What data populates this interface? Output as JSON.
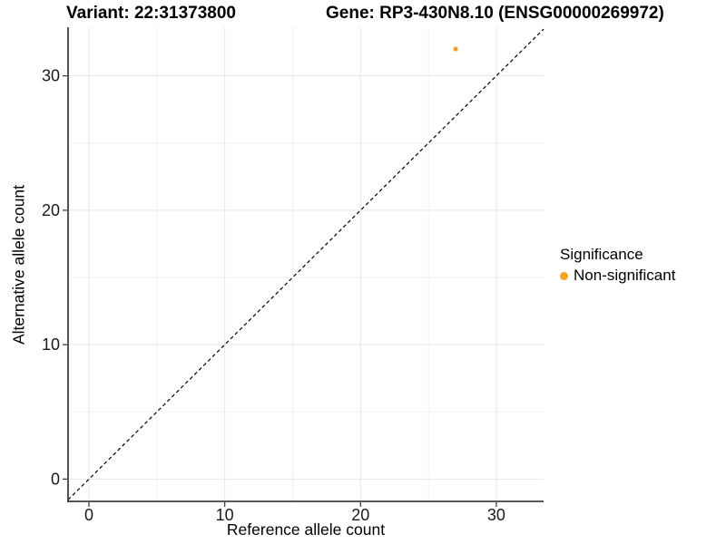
{
  "titles": {
    "left": "Variant: 22:31373800",
    "right": "Gene: RP3-430N8.10 (ENSG00000269972)"
  },
  "axes": {
    "x_label": "Reference allele count",
    "y_label": "Alternative allele count"
  },
  "legend": {
    "title": "Significance",
    "items": [
      {
        "label": "Non-significant",
        "color": "#FAA01F"
      }
    ]
  },
  "colors": {
    "background": "#FFFFFF",
    "grid_major": "#E7E7E7",
    "grid_minor": "#F1F1F1",
    "axis_line": "#404040",
    "tick_mark": "#333333",
    "tick_label": "#1A1A1A",
    "reference_line": "#000000",
    "point": "#FAA01F"
  },
  "chart_data": {
    "type": "scatter",
    "title": "Variant: 22:31373800 — Gene: RP3-430N8.10 (ENSG00000269972)",
    "xlabel": "Reference allele count",
    "ylabel": "Alternative allele count",
    "xlim": [
      -1.54,
      33.48
    ],
    "ylim": [
      -1.66,
      33.62
    ],
    "x_major_ticks": [
      0,
      10,
      20,
      30
    ],
    "y_major_ticks": [
      0,
      10,
      20,
      30
    ],
    "x_minor_ticks": [
      5,
      15,
      25
    ],
    "y_minor_ticks": [
      5,
      15,
      25
    ],
    "grid": "major and minor gridlines, white panel, open top/right (axis lines on left and bottom only)",
    "legend_position": "right-center",
    "reference_line": {
      "equation": "y = x",
      "style": "dashed",
      "color": "#000000"
    },
    "series": [
      {
        "name": "Non-significant",
        "color": "#FAA01F",
        "points": [
          {
            "x": 27,
            "y": 32
          }
        ]
      }
    ]
  }
}
